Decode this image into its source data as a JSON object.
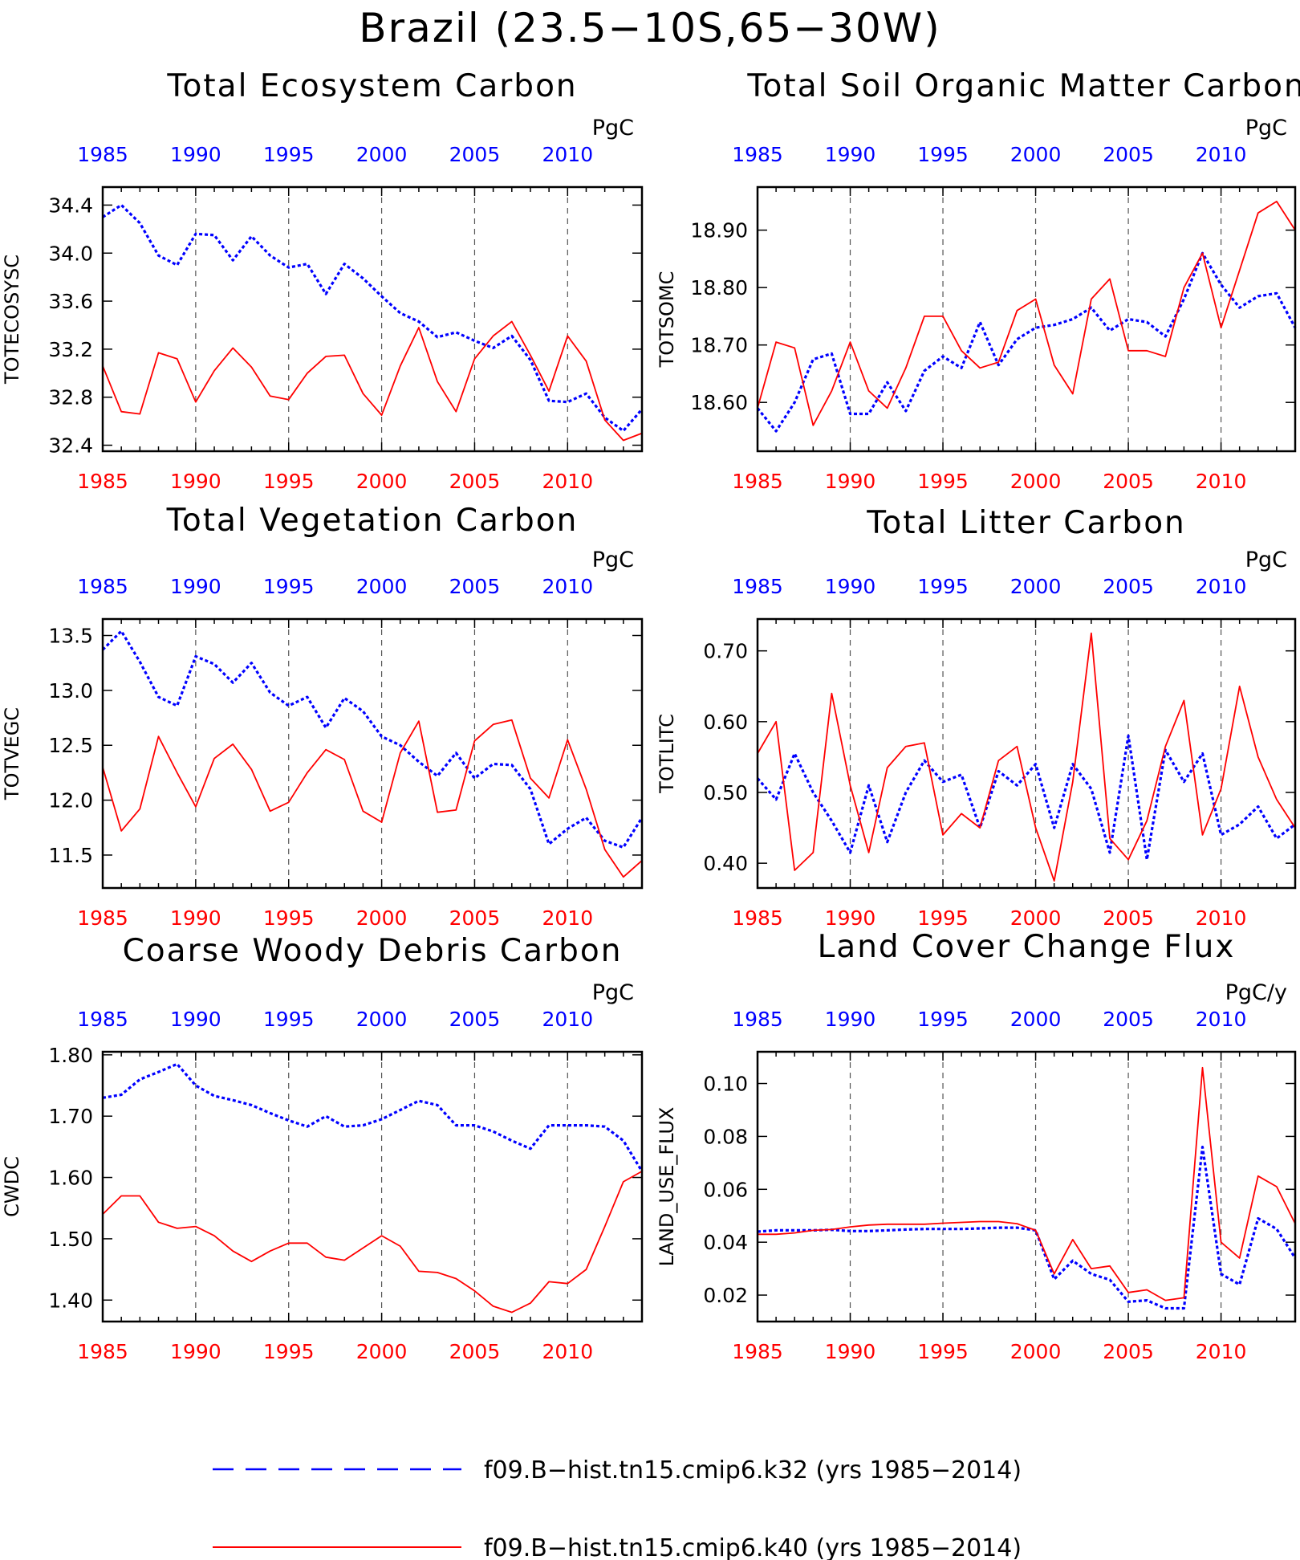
{
  "title": "Brazil (23.5−10S,65−30W)",
  "colors": {
    "k32": "#0000ff",
    "k40": "#ff0000",
    "axis": "#000000",
    "grid": "#555555"
  },
  "chart_data": [
    {
      "type": "line",
      "title": "Total Ecosystem Carbon",
      "ylabel": "TOTECOSYSC",
      "units": "PgC",
      "x": [
        1985,
        1986,
        1987,
        1988,
        1989,
        1990,
        1991,
        1992,
        1993,
        1994,
        1995,
        1996,
        1997,
        1998,
        1999,
        2000,
        2001,
        2002,
        2003,
        2004,
        2005,
        2006,
        2007,
        2008,
        2009,
        2010,
        2011,
        2012,
        2013,
        2014
      ],
      "xlim": [
        1985,
        2014
      ],
      "ylim": [
        32.35,
        34.55
      ],
      "yticks": [
        "32.4",
        "32.8",
        "33.2",
        "33.6",
        "34.0",
        "34.4"
      ],
      "xticks": [
        "1985",
        "1990",
        "1995",
        "2000",
        "2005",
        "2010"
      ],
      "series": [
        {
          "name": "f09.B−hist.tn15.cmip6.k32 (yrs 1985−2014)",
          "style": "dashed",
          "values": [
            34.3,
            34.4,
            34.25,
            33.98,
            33.9,
            34.16,
            34.15,
            33.94,
            34.14,
            33.98,
            33.88,
            33.91,
            33.66,
            33.91,
            33.79,
            33.64,
            33.5,
            33.43,
            33.3,
            33.34,
            33.27,
            33.21,
            33.31,
            33.11,
            32.77,
            32.76,
            32.83,
            32.63,
            32.52,
            32.7
          ]
        },
        {
          "name": "f09.B−hist.tn15.cmip6.k40 (yrs 1985−2014)",
          "style": "solid",
          "values": [
            33.06,
            32.68,
            32.66,
            33.17,
            33.12,
            32.76,
            33.02,
            33.21,
            33.05,
            32.81,
            32.78,
            33.0,
            33.14,
            33.15,
            32.83,
            32.65,
            33.06,
            33.38,
            32.93,
            32.68,
            33.12,
            33.31,
            33.43,
            33.15,
            32.85,
            33.31,
            33.1,
            32.61,
            32.44,
            32.5
          ]
        }
      ]
    },
    {
      "type": "line",
      "title": "Total Soil Organic Matter Carbon",
      "ylabel": "TOTSOMC",
      "units": "PgC",
      "x": [
        1985,
        1986,
        1987,
        1988,
        1989,
        1990,
        1991,
        1992,
        1993,
        1994,
        1995,
        1996,
        1997,
        1998,
        1999,
        2000,
        2001,
        2002,
        2003,
        2004,
        2005,
        2006,
        2007,
        2008,
        2009,
        2010,
        2011,
        2012,
        2013,
        2014
      ],
      "xlim": [
        1985,
        2014
      ],
      "ylim": [
        18.515,
        18.975
      ],
      "yticks": [
        "18.60",
        "18.70",
        "18.80",
        "18.90"
      ],
      "xticks": [
        "1985",
        "1990",
        "1995",
        "2000",
        "2005",
        "2010"
      ],
      "series": [
        {
          "name": "f09.B−hist.tn15.cmip6.k32 (yrs 1985−2014)",
          "style": "dashed",
          "values": [
            18.59,
            18.55,
            18.6,
            18.675,
            18.685,
            18.58,
            18.58,
            18.635,
            18.585,
            18.655,
            18.68,
            18.66,
            18.74,
            18.665,
            18.71,
            18.73,
            18.735,
            18.745,
            18.765,
            18.725,
            18.745,
            18.74,
            18.715,
            18.78,
            18.86,
            18.805,
            18.765,
            18.785,
            18.79,
            18.73
          ]
        },
        {
          "name": "f09.B−hist.tn15.cmip6.k40 (yrs 1985−2014)",
          "style": "solid",
          "values": [
            18.59,
            18.705,
            18.695,
            18.56,
            18.62,
            18.705,
            18.62,
            18.59,
            18.66,
            18.75,
            18.75,
            18.69,
            18.66,
            18.67,
            18.76,
            18.78,
            18.665,
            18.615,
            18.78,
            18.815,
            18.69,
            18.69,
            18.68,
            18.8,
            18.86,
            18.73,
            18.83,
            18.93,
            18.95,
            18.9
          ]
        }
      ]
    },
    {
      "type": "line",
      "title": "Total Vegetation Carbon",
      "ylabel": "TOTVEGC",
      "units": "PgC",
      "x": [
        1985,
        1986,
        1987,
        1988,
        1989,
        1990,
        1991,
        1992,
        1993,
        1994,
        1995,
        1996,
        1997,
        1998,
        1999,
        2000,
        2001,
        2002,
        2003,
        2004,
        2005,
        2006,
        2007,
        2008,
        2009,
        2010,
        2011,
        2012,
        2013,
        2014
      ],
      "xlim": [
        1985,
        2014
      ],
      "ylim": [
        11.2,
        13.65
      ],
      "yticks": [
        "11.5",
        "12.0",
        "12.5",
        "13.0",
        "13.5"
      ],
      "xticks": [
        "1985",
        "1990",
        "1995",
        "2000",
        "2005",
        "2010"
      ],
      "series": [
        {
          "name": "f09.B−hist.tn15.cmip6.k32 (yrs 1985−2014)",
          "style": "dashed",
          "values": [
            13.37,
            13.54,
            13.26,
            12.94,
            12.86,
            13.31,
            13.24,
            13.07,
            13.25,
            12.98,
            12.86,
            12.94,
            12.66,
            12.93,
            12.81,
            12.58,
            12.5,
            12.35,
            12.22,
            12.43,
            12.2,
            12.33,
            12.32,
            12.1,
            11.6,
            11.74,
            11.84,
            11.63,
            11.57,
            11.84
          ]
        },
        {
          "name": "f09.B−hist.tn15.cmip6.k40 (yrs 1985−2014)",
          "style": "solid",
          "values": [
            12.3,
            11.72,
            11.92,
            12.58,
            12.25,
            11.94,
            12.38,
            12.51,
            12.28,
            11.9,
            11.98,
            12.25,
            12.46,
            12.37,
            11.9,
            11.8,
            12.43,
            12.72,
            11.89,
            11.91,
            12.54,
            12.69,
            12.73,
            12.2,
            12.02,
            12.55,
            12.1,
            11.55,
            11.3,
            11.45
          ]
        }
      ]
    },
    {
      "type": "line",
      "title": "Total Litter Carbon",
      "ylabel": "TOTLITC",
      "units": "PgC",
      "x": [
        1985,
        1986,
        1987,
        1988,
        1989,
        1990,
        1991,
        1992,
        1993,
        1994,
        1995,
        1996,
        1997,
        1998,
        1999,
        2000,
        2001,
        2002,
        2003,
        2004,
        2005,
        2006,
        2007,
        2008,
        2009,
        2010,
        2011,
        2012,
        2013,
        2014
      ],
      "xlim": [
        1985,
        2014
      ],
      "ylim": [
        0.365,
        0.745
      ],
      "yticks": [
        "0.40",
        "0.50",
        "0.60",
        "0.70"
      ],
      "xticks": [
        "1985",
        "1990",
        "1995",
        "2000",
        "2005",
        "2010"
      ],
      "series": [
        {
          "name": "f09.B−hist.tn15.cmip6.k32 (yrs 1985−2014)",
          "style": "dashed",
          "values": [
            0.52,
            0.49,
            0.555,
            0.5,
            0.46,
            0.415,
            0.51,
            0.43,
            0.5,
            0.545,
            0.515,
            0.525,
            0.45,
            0.53,
            0.51,
            0.54,
            0.45,
            0.54,
            0.505,
            0.415,
            0.58,
            0.405,
            0.56,
            0.515,
            0.555,
            0.44,
            0.455,
            0.48,
            0.435,
            0.455
          ]
        },
        {
          "name": "f09.B−hist.tn15.cmip6.k40 (yrs 1985−2014)",
          "style": "solid",
          "values": [
            0.555,
            0.6,
            0.39,
            0.415,
            0.64,
            0.51,
            0.415,
            0.535,
            0.565,
            0.57,
            0.44,
            0.47,
            0.45,
            0.545,
            0.565,
            0.45,
            0.375,
            0.515,
            0.725,
            0.435,
            0.405,
            0.46,
            0.565,
            0.63,
            0.44,
            0.505,
            0.65,
            0.55,
            0.49,
            0.45
          ]
        }
      ]
    },
    {
      "type": "line",
      "title": "Coarse Woody Debris Carbon",
      "ylabel": "CWDC",
      "units": "PgC",
      "x": [
        1985,
        1986,
        1987,
        1988,
        1989,
        1990,
        1991,
        1992,
        1993,
        1994,
        1995,
        1996,
        1997,
        1998,
        1999,
        2000,
        2001,
        2002,
        2003,
        2004,
        2005,
        2006,
        2007,
        2008,
        2009,
        2010,
        2011,
        2012,
        2013,
        2014
      ],
      "xlim": [
        1985,
        2014
      ],
      "ylim": [
        1.365,
        1.805
      ],
      "yticks": [
        "1.40",
        "1.50",
        "1.60",
        "1.70",
        "1.80"
      ],
      "xticks": [
        "1985",
        "1990",
        "1995",
        "2000",
        "2005",
        "2010"
      ],
      "series": [
        {
          "name": "f09.B−hist.tn15.cmip6.k32 (yrs 1985−2014)",
          "style": "dashed",
          "values": [
            1.73,
            1.735,
            1.76,
            1.772,
            1.785,
            1.75,
            1.733,
            1.726,
            1.718,
            1.705,
            1.693,
            1.683,
            1.7,
            1.683,
            1.685,
            1.695,
            1.71,
            1.725,
            1.718,
            1.685,
            1.685,
            1.675,
            1.66,
            1.647,
            1.685,
            1.685,
            1.685,
            1.683,
            1.66,
            1.61
          ]
        },
        {
          "name": "f09.B−hist.tn15.cmip6.k40 (yrs 1985−2014)",
          "style": "solid",
          "values": [
            1.54,
            1.57,
            1.57,
            1.527,
            1.517,
            1.52,
            1.505,
            1.48,
            1.463,
            1.48,
            1.493,
            1.493,
            1.47,
            1.465,
            1.485,
            1.505,
            1.488,
            1.447,
            1.445,
            1.435,
            1.415,
            1.39,
            1.38,
            1.395,
            1.43,
            1.427,
            1.45,
            1.52,
            1.593,
            1.61
          ]
        }
      ]
    },
    {
      "type": "line",
      "title": "Land Cover Change Flux",
      "ylabel": "LAND_USE_FLUX",
      "units": "PgC/y",
      "x": [
        1985,
        1986,
        1987,
        1988,
        1989,
        1990,
        1991,
        1992,
        1993,
        1994,
        1995,
        1996,
        1997,
        1998,
        1999,
        2000,
        2001,
        2002,
        2003,
        2004,
        2005,
        2006,
        2007,
        2008,
        2009,
        2010,
        2011,
        2012,
        2013,
        2014
      ],
      "xlim": [
        1985,
        2014
      ],
      "ylim": [
        0.01,
        0.112
      ],
      "yticks": [
        "0.02",
        "0.04",
        "0.06",
        "0.08",
        "0.10"
      ],
      "xticks": [
        "1985",
        "1990",
        "1995",
        "2000",
        "2005",
        "2010"
      ],
      "series": [
        {
          "name": "f09.B−hist.tn15.cmip6.k32 (yrs 1985−2014)",
          "style": "dashed",
          "values": [
            0.044,
            0.0445,
            0.0445,
            0.0445,
            0.0447,
            0.0442,
            0.0442,
            0.0445,
            0.0448,
            0.045,
            0.045,
            0.045,
            0.0452,
            0.0455,
            0.0455,
            0.0445,
            0.026,
            0.033,
            0.028,
            0.0258,
            0.0175,
            0.018,
            0.015,
            0.015,
            0.076,
            0.028,
            0.024,
            0.049,
            0.045,
            0.034
          ]
        },
        {
          "name": "f09.B−hist.tn15.cmip6.k40 (yrs 1985−2014)",
          "style": "solid",
          "values": [
            0.043,
            0.043,
            0.0435,
            0.0445,
            0.0448,
            0.0458,
            0.0465,
            0.0468,
            0.0468,
            0.0468,
            0.0472,
            0.0475,
            0.0478,
            0.0478,
            0.047,
            0.0445,
            0.028,
            0.041,
            0.03,
            0.031,
            0.021,
            0.022,
            0.018,
            0.019,
            0.106,
            0.04,
            0.034,
            0.065,
            0.061,
            0.047
          ]
        }
      ]
    }
  ],
  "legend": {
    "k32_label": "f09.B−hist.tn15.cmip6.k32 (yrs 1985−2014)",
    "k40_label": "f09.B−hist.tn15.cmip6.k40 (yrs 1985−2014)"
  }
}
